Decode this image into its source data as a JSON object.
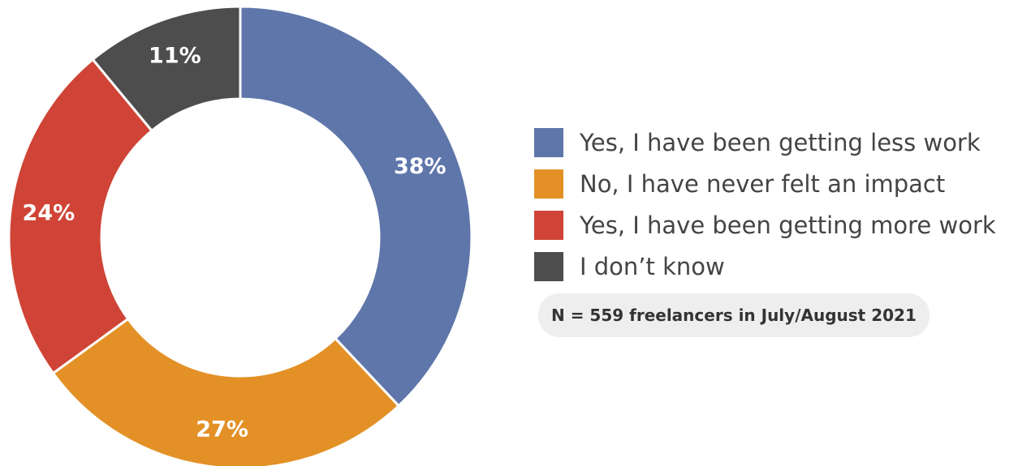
{
  "chart_data": {
    "type": "pie",
    "donut": true,
    "title": "",
    "slices": [
      {
        "label": "Yes, I have been getting less work",
        "value": 38,
        "value_label": "38%",
        "color": "#5f76aa"
      },
      {
        "label": "No, I have never felt an impact",
        "value": 27,
        "value_label": "27%",
        "color": "#e39127"
      },
      {
        "label": "Yes, I have been getting more work",
        "value": 24,
        "value_label": "24%",
        "color": "#cf4436"
      },
      {
        "label": "I don’t know",
        "value": 11,
        "value_label": "11%",
        "color": "#4d4d4d"
      }
    ],
    "start_angle_deg": 0,
    "direction": "clockwise",
    "legend_position": "right"
  },
  "note": "N = 559 freelancers in July/August 2021"
}
